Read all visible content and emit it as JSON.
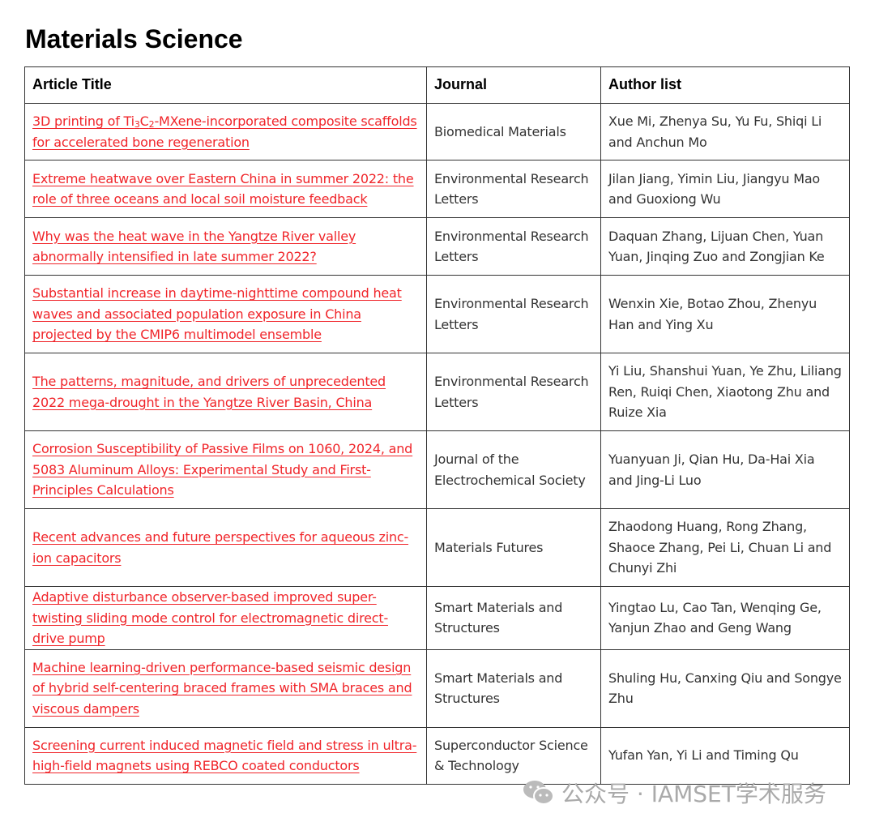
{
  "heading": "Materials Science",
  "columns": [
    "Article Title",
    "Journal",
    "Author list"
  ],
  "rows": [
    {
      "title_parts": [
        "3D printing of Ti",
        "3",
        "C",
        "2",
        "-MXene-incorporated composite scaffolds for accelerated bone regeneration"
      ],
      "journal": "Biomedical Materials",
      "authors": "Xue Mi, Zhenya Su, Yu Fu, Shiqi Li and Anchun Mo",
      "h": 70
    },
    {
      "title": "Extreme heatwave over Eastern China in summer 2022: the role of three oceans and local soil moisture feedback",
      "journal": "Environmental Research Letters",
      "authors": "Jilan Jiang, Yimin Liu, Jiangyu Mao and Guoxiong Wu",
      "h": 71
    },
    {
      "title": "Why was the heat wave in the Yangtze River valley abnormally intensified in late summer 2022?",
      "journal": "Environmental Research Letters",
      "authors": "Daquan Zhang, Lijuan Chen, Yuan Yuan, Jinqing Zuo and Zongjian Ke",
      "h": 71
    },
    {
      "title": "Substantial increase in daytime-nighttime compound heat waves and associated population exposure in China projected by the CMIP6 multimodel ensemble",
      "journal": "Environmental Research Letters",
      "authors": "Wenxin Xie, Botao Zhou, Zhenyu Han and Ying Xu",
      "h": 96
    },
    {
      "title": "The patterns, magnitude, and drivers of unprecedented 2022 mega-drought in the Yangtze River Basin, China",
      "journal": "Environmental Research Letters",
      "authors": "Yi Liu, Shanshui Yuan, Ye Zhu, Liliang Ren, Ruiqi Chen, Xiaotong Zhu and Ruize Xia",
      "h": 96
    },
    {
      "title": "Corrosion Susceptibility of Passive Films on 1060, 2024, and 5083 Aluminum Alloys: Experimental Study and First-Principles Calculations",
      "journal": "Journal of the Electrochemical Society",
      "authors": "Yuanyuan Ji, Qian Hu, Da-Hai Xia and Jing-Li Luo",
      "h": 96
    },
    {
      "title": "Recent advances and future perspectives for aqueous zinc-ion capacitors",
      "journal": "Materials Futures",
      "authors": "Zhaodong Huang, Rong Zhang, Shaoce Zhang, Pei Li, Chuan Li and Chunyi Zhi",
      "h": 96
    },
    {
      "title": "Adaptive disturbance observer-based improved super-twisting sliding mode control for electromagnetic direct-drive pump",
      "journal": "Smart Materials and Structures",
      "authors": "Yingtao Lu, Cao Tan, Wenqing Ge, Yanjun Zhao and Geng Wang",
      "h": 71
    },
    {
      "title": "Machine learning-driven performance-based seismic design of hybrid self-centering braced frames with SMA braces and viscous dampers",
      "journal": "Smart Materials and Structures",
      "authors": "Shuling Hu, Canxing Qiu and Songye Zhu",
      "h": 96
    },
    {
      "title": "Screening current induced magnetic field and stress in ultra-high-field magnets using REBCO coated conductors",
      "journal": "Superconductor Science & Technology",
      "authors": "Yufan Yan, Yi Li and Timing Qu",
      "h": 70
    }
  ],
  "watermark": "公众号 · IAMSET学术服务",
  "colors": {
    "link": "#f0252a",
    "border": "#333333",
    "watermark": "#aaaaaa"
  }
}
